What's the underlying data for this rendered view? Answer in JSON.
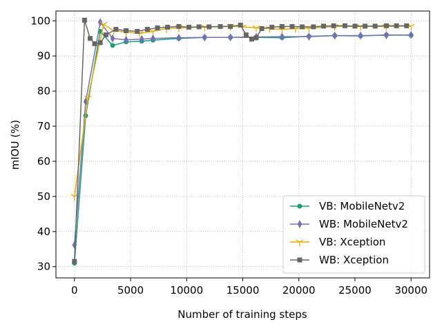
{
  "chart_data": {
    "type": "line",
    "xlabel": "Number of training steps",
    "ylabel": "mIOU (%)",
    "xlim": [
      -1650,
      31650
    ],
    "ylim": [
      26.8,
      102.8
    ],
    "xticks": [
      0,
      5000,
      10000,
      15000,
      20000,
      25000,
      30000
    ],
    "xtick_labels": [
      "0",
      "5000",
      "10000",
      "15000",
      "20000",
      "25000",
      "30000"
    ],
    "yticks": [
      30,
      40,
      50,
      60,
      70,
      80,
      90,
      100
    ],
    "ytick_labels": [
      "30",
      "40",
      "50",
      "60",
      "70",
      "80",
      "90",
      "100"
    ],
    "grid": true,
    "legend_position": "lower-right",
    "series": [
      {
        "name": "VB: MobileNetv2",
        "color": "#1b9e77",
        "marker": "circle",
        "x": [
          0,
          1000,
          2300,
          3400,
          4600,
          6000,
          7000,
          9300,
          11600,
          13900,
          16200,
          18500,
          20900,
          23200,
          25500,
          27800,
          30000
        ],
        "y": [
          31.0,
          73.0,
          97.0,
          93.0,
          94.0,
          94.2,
          94.5,
          95.0,
          95.3,
          95.3,
          95.3,
          95.2,
          95.6,
          95.8,
          95.7,
          96.0,
          95.9
        ]
      },
      {
        "name": "WB: MobileNetv2",
        "color": "#7570b3",
        "marker": "thin_diamond",
        "x": [
          0,
          1000,
          2300,
          3400,
          4600,
          6000,
          7000,
          9300,
          11600,
          13900,
          16200,
          18500,
          20900,
          23200,
          25500,
          27800,
          30000
        ],
        "y": [
          36.2,
          77.0,
          99.6,
          95.0,
          94.6,
          94.8,
          95.0,
          95.2,
          95.3,
          95.3,
          95.4,
          95.5,
          95.5,
          95.8,
          95.8,
          95.9,
          96.0
        ]
      },
      {
        "name": "VB: Xception",
        "color": "#e6ab02",
        "marker": "tri_down",
        "x": [
          0,
          1200,
          2600,
          3500,
          4600,
          5800,
          7000,
          8200,
          9300,
          11600,
          13900,
          15000,
          16200,
          17400,
          18500,
          19700,
          20900,
          23200,
          25500,
          27800,
          30000
        ],
        "y": [
          50.0,
          78.0,
          99.0,
          97.2,
          96.8,
          96.4,
          97.0,
          97.8,
          98.0,
          98.2,
          98.4,
          98.3,
          98.0,
          97.8,
          97.6,
          97.8,
          97.9,
          98.4,
          98.4,
          98.4,
          98.5
        ]
      },
      {
        "name": "WB: Xception",
        "color": "#666666",
        "marker": "square",
        "x": [
          0,
          900,
          1400,
          1800,
          2300,
          2800,
          3700,
          4600,
          5600,
          6500,
          7400,
          8300,
          9300,
          10200,
          11100,
          12000,
          13000,
          13900,
          14800,
          15300,
          15800,
          16200,
          16700,
          17600,
          18500,
          19400,
          20300,
          21300,
          22200,
          23100,
          24100,
          25000,
          25900,
          26800,
          27800,
          28700,
          29600
        ],
        "y": [
          31.5,
          100.2,
          95.0,
          93.5,
          93.8,
          96.0,
          97.6,
          97.2,
          97.0,
          97.6,
          98.0,
          98.2,
          98.4,
          98.2,
          98.3,
          98.3,
          98.4,
          98.4,
          98.8,
          96.0,
          94.8,
          95.2,
          97.8,
          98.2,
          98.4,
          98.4,
          98.3,
          98.3,
          98.5,
          98.6,
          98.6,
          98.5,
          98.5,
          98.5,
          98.6,
          98.6,
          98.6
        ]
      }
    ]
  }
}
